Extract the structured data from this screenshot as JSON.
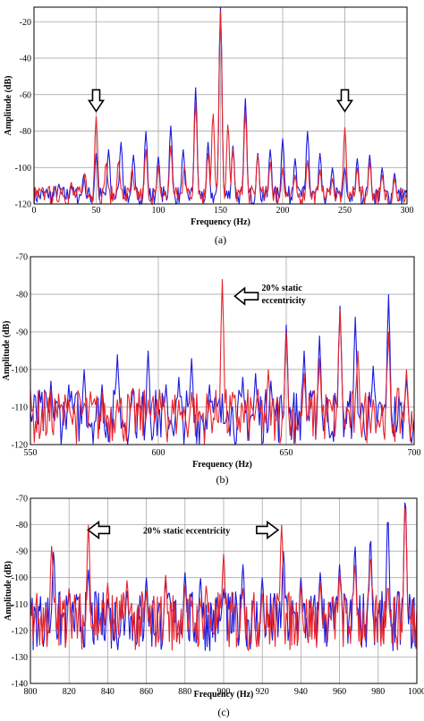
{
  "chart_data": [
    {
      "type": "line",
      "caption": "(a)",
      "xlabel": "Frequency (Hz)",
      "ylabel": "Amplitude (dB)",
      "xlim": [
        0,
        300
      ],
      "ylim": [
        -120,
        -12
      ],
      "xticks": [
        0,
        50,
        100,
        150,
        200,
        250,
        300
      ],
      "yticks": [
        -120,
        -100,
        -80,
        -60,
        -40,
        -20
      ],
      "grid": true,
      "colors": {
        "series_1": "#e8242b",
        "series_2": "#1a1adf"
      },
      "series": [
        {
          "peaks": [
            [
              10,
              -113
            ],
            [
              22,
              -111
            ],
            [
              30,
              -108
            ],
            [
              41,
              -103
            ],
            [
              50,
              -72
            ],
            [
              58,
              -97
            ],
            [
              68,
              -96
            ],
            [
              79,
              -100
            ],
            [
              90,
              -90
            ],
            [
              100,
              -99
            ],
            [
              110,
              -88
            ],
            [
              121,
              -99
            ],
            [
              130,
              -64
            ],
            [
              140,
              -92
            ],
            [
              144,
              -70
            ],
            [
              150,
              -14
            ],
            [
              156,
              -76
            ],
            [
              160,
              -90
            ],
            [
              170,
              -69
            ],
            [
              180,
              -93
            ],
            [
              190,
              -97
            ],
            [
              200,
              -100
            ],
            [
              210,
              -104
            ],
            [
              220,
              -96
            ],
            [
              230,
              -101
            ],
            [
              240,
              -106
            ],
            [
              250,
              -78
            ],
            [
              260,
              -100
            ],
            [
              270,
              -97
            ],
            [
              280,
              -104
            ],
            [
              290,
              -106
            ]
          ]
        },
        {
          "peaks": [
            [
              10,
              -112
            ],
            [
              20,
              -109
            ],
            [
              30,
              -110
            ],
            [
              40,
              -104
            ],
            [
              50,
              -92
            ],
            [
              60,
              -90
            ],
            [
              70,
              -86
            ],
            [
              80,
              -93
            ],
            [
              90,
              -80
            ],
            [
              100,
              -94
            ],
            [
              110,
              -77
            ],
            [
              120,
              -90
            ],
            [
              130,
              -56
            ],
            [
              140,
              -86
            ],
            [
              150,
              -11
            ],
            [
              160,
              -88
            ],
            [
              170,
              -62
            ],
            [
              180,
              -92
            ],
            [
              190,
              -90
            ],
            [
              200,
              -84
            ],
            [
              210,
              -95
            ],
            [
              220,
              -80
            ],
            [
              230,
              -92
            ],
            [
              240,
              -100
            ],
            [
              250,
              -100
            ],
            [
              260,
              -95
            ],
            [
              270,
              -93
            ],
            [
              280,
              -100
            ],
            [
              290,
              -103
            ]
          ]
        }
      ],
      "annotations": [
        {
          "x": 50
        },
        {
          "x": 250
        }
      ]
    },
    {
      "type": "line",
      "caption": "(b)",
      "xlabel": "Frequency (Hz)",
      "ylabel": "Amplitude (dB)",
      "xlim": [
        550,
        700
      ],
      "ylim": [
        -120,
        -70
      ],
      "xticks": [
        550,
        600,
        650,
        700
      ],
      "xticklabels": [
        "550",
        "600",
        "650",
        "700"
      ],
      "yticks": [
        -120,
        -110,
        -100,
        -90,
        -80,
        -70
      ],
      "grid": true,
      "series": [
        {
          "peaks": [
            [
              560,
              -110
            ],
            [
              565,
              -108
            ],
            [
              571,
              -109
            ],
            [
              578,
              -112
            ],
            [
              584,
              -108
            ],
            [
              590,
              -109
            ],
            [
              596,
              -108
            ],
            [
              602,
              -107
            ],
            [
              608,
              -109
            ],
            [
              613,
              -106
            ],
            [
              620,
              -108
            ],
            [
              625,
              -76
            ],
            [
              630,
              -110
            ],
            [
              638,
              -111
            ],
            [
              643,
              -100
            ],
            [
              650,
              -90
            ],
            [
              657,
              -101
            ],
            [
              663,
              -97
            ],
            [
              671,
              -84
            ],
            [
              678,
              -95
            ],
            [
              684,
              -108
            ],
            [
              690,
              -90
            ],
            [
              697,
              -100
            ]
          ]
        },
        {
          "peaks": [
            [
              558,
              -103
            ],
            [
              565,
              -104
            ],
            [
              571,
              -100
            ],
            [
              578,
              -104
            ],
            [
              584,
              -96
            ],
            [
              590,
              -105
            ],
            [
              596,
              -95
            ],
            [
              603,
              -104
            ],
            [
              608,
              -102
            ],
            [
              613,
              -97
            ],
            [
              620,
              -104
            ],
            [
              627,
              -111
            ],
            [
              633,
              -102
            ],
            [
              638,
              -101
            ],
            [
              644,
              -103
            ],
            [
              650,
              -88
            ],
            [
              657,
              -95
            ],
            [
              663,
              -91
            ],
            [
              671,
              -83
            ],
            [
              677,
              -86
            ],
            [
              684,
              -99
            ],
            [
              690,
              -80
            ],
            [
              697,
              -102
            ]
          ]
        }
      ],
      "annotations": [
        {
          "x": 625,
          "text": "20% static eccentricity"
        }
      ]
    },
    {
      "type": "line",
      "caption": "(c)",
      "xlabel": "Frequency (Hz)",
      "ylabel": "Amplitude (dB)",
      "xlim": [
        800,
        1000
      ],
      "ylim": [
        -140,
        -70
      ],
      "xticks": [
        800,
        820,
        840,
        860,
        880,
        900,
        920,
        940,
        960,
        980,
        1000
      ],
      "yticks": [
        -140,
        -130,
        -120,
        -110,
        -100,
        -90,
        -80,
        -70
      ],
      "grid": true,
      "series": [
        {
          "peaks": [
            [
              803,
              -110
            ],
            [
              811,
              -88
            ],
            [
              820,
              -104
            ],
            [
              830,
              -80
            ],
            [
              840,
              -102
            ],
            [
              850,
              -101
            ],
            [
              860,
              -105
            ],
            [
              870,
              -99
            ],
            [
              880,
              -103
            ],
            [
              891,
              -103
            ],
            [
              900,
              -91
            ],
            [
              910,
              -104
            ],
            [
              920,
              -106
            ],
            [
              930,
              -80
            ],
            [
              940,
              -103
            ],
            [
              950,
              -102
            ],
            [
              960,
              -98
            ],
            [
              968,
              -95
            ],
            [
              976,
              -92
            ],
            [
              985,
              -103
            ],
            [
              994,
              -72
            ]
          ]
        },
        {
          "peaks": [
            [
              805,
              -112
            ],
            [
              812,
              -90
            ],
            [
              820,
              -106
            ],
            [
              830,
              -97
            ],
            [
              840,
              -108
            ],
            [
              850,
              -105
            ],
            [
              860,
              -100
            ],
            [
              870,
              -101
            ],
            [
              880,
              -98
            ],
            [
              888,
              -100
            ],
            [
              900,
              -104
            ],
            [
              910,
              -95
            ],
            [
              920,
              -100
            ],
            [
              931,
              -90
            ],
            [
              940,
              -100
            ],
            [
              950,
              -98
            ],
            [
              960,
              -95
            ],
            [
              968,
              -88
            ],
            [
              976,
              -85
            ],
            [
              985,
              -77
            ],
            [
              994,
              -70
            ]
          ]
        }
      ],
      "annotations": [
        {
          "x1": 840,
          "x2": 918,
          "text": "20% static eccentricity"
        }
      ]
    }
  ]
}
